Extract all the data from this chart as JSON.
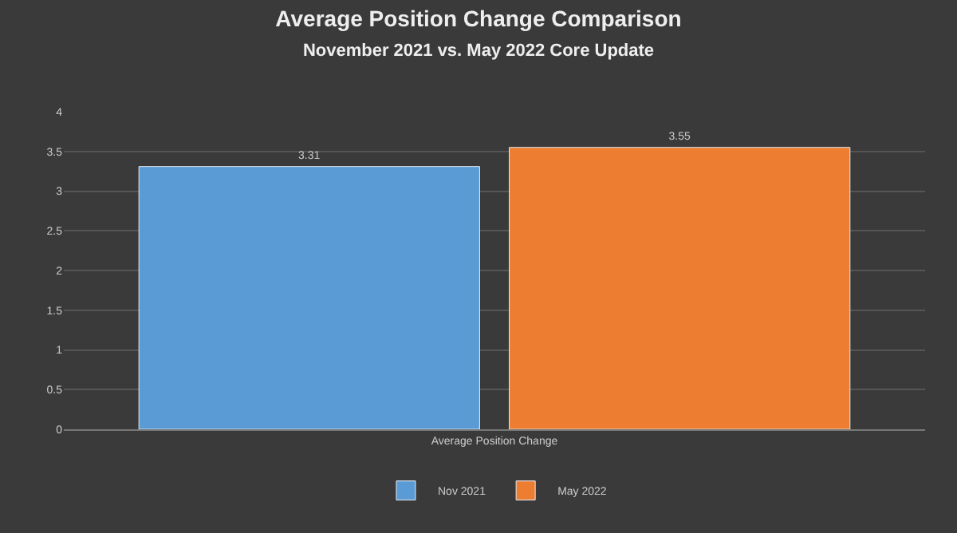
{
  "chart_data": {
    "type": "bar",
    "title": "Average Position Change Comparison",
    "subtitle": "November 2021 vs. May 2022 Core Update",
    "categories": [
      "Average Position Change"
    ],
    "series": [
      {
        "name": "Nov 2021",
        "color": "#5b9bd5",
        "values": [
          3.31
        ]
      },
      {
        "name": "May 2022",
        "color": "#ed7d31",
        "values": [
          3.55
        ]
      }
    ],
    "ylim": [
      0,
      4
    ],
    "yticks": [
      0,
      0.5,
      1,
      1.5,
      2,
      2.5,
      3,
      3.5,
      4
    ],
    "grid": "y",
    "legend": "bottom",
    "data_labels": true
  }
}
